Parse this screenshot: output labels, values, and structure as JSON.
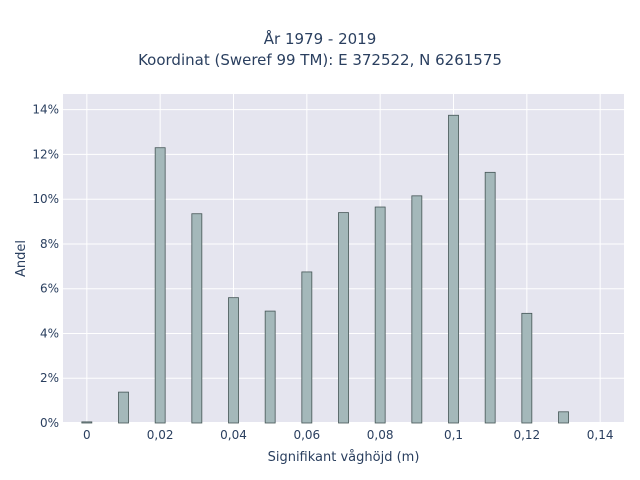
{
  "title": {
    "line1": "År 1979 - 2019",
    "line2": "Koordinat (Sweref 99 TM): E 372522, N 6261575"
  },
  "chart_data": {
    "type": "bar",
    "title": "År 1979 - 2019",
    "subtitle": "Koordinat (Sweref 99 TM): E 372522, N 6261575",
    "xlabel": "Signifikant våghöjd (m)",
    "ylabel": "Andel",
    "x": [
      0,
      0.01,
      0.02,
      0.03,
      0.04,
      0.05,
      0.06,
      0.07,
      0.08,
      0.09,
      0.1,
      0.11,
      0.12,
      0.13
    ],
    "values": [
      0.05,
      1.38,
      12.3,
      9.35,
      5.6,
      5.0,
      6.75,
      9.4,
      9.65,
      10.15,
      13.75,
      11.2,
      4.9,
      0.5
    ],
    "xlim": [
      -0.0065,
      0.1465
    ],
    "ylim": [
      0,
      14.7
    ],
    "xticks": [
      0,
      0.02,
      0.04,
      0.06,
      0.08,
      0.1,
      0.12,
      0.14
    ],
    "xtick_labels": [
      "0",
      "0,02",
      "0,04",
      "0,06",
      "0,08",
      "0,1",
      "0,12",
      "0,14"
    ],
    "yticks": [
      0,
      2,
      4,
      6,
      8,
      10,
      12,
      14
    ],
    "ytick_labels": [
      "0%",
      "2%",
      "4%",
      "6%",
      "8%",
      "10%",
      "12%",
      "14%"
    ],
    "grid": true,
    "bar_color": "#a4b8ba",
    "bar_edge_color": "#445555",
    "plot_bg": "#e5e5ef"
  }
}
